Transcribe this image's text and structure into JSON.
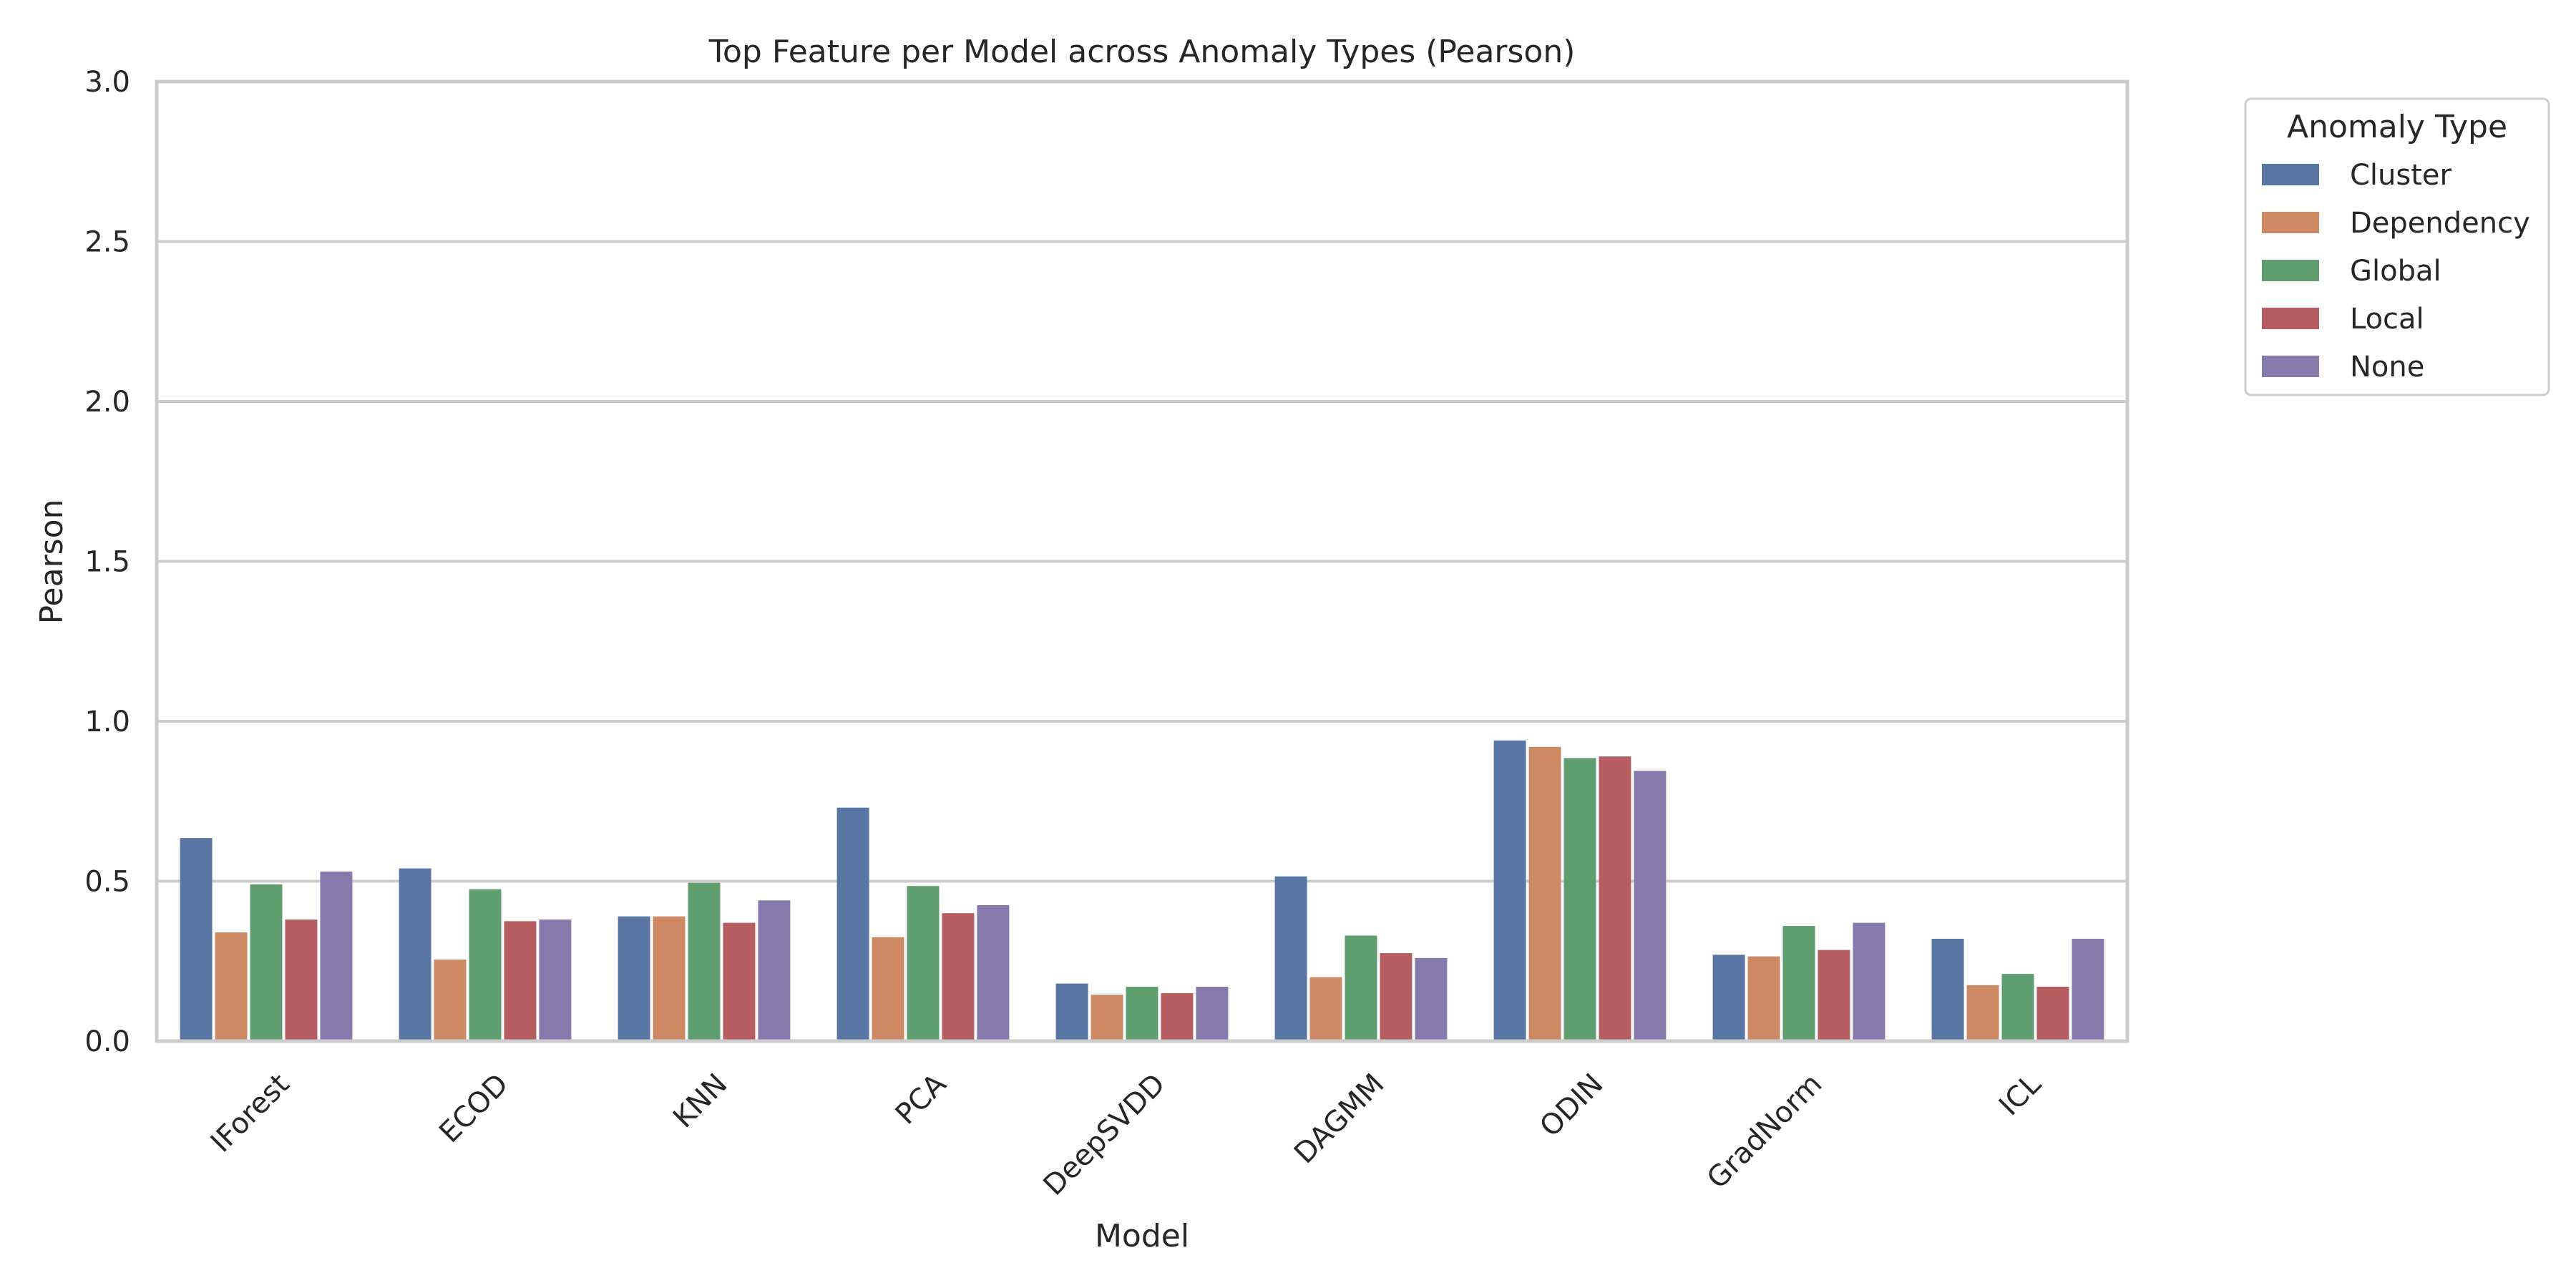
{
  "chart_data": {
    "type": "bar",
    "title": "Top Feature per Model across Anomaly Types (Pearson)",
    "xlabel": "Model",
    "ylabel": "Pearson",
    "ylim": [
      0,
      3.0
    ],
    "yticks": [
      "0.0",
      "0.5",
      "1.0",
      "1.5",
      "2.0",
      "2.5",
      "3.0"
    ],
    "grid": true,
    "legend": {
      "title": "Anomaly Type",
      "placement": "outside-top-right"
    },
    "categories": [
      "IForest",
      "ECOD",
      "KNN",
      "PCA",
      "DeepSVDD",
      "DAGMM",
      "ODIN",
      "GradNorm",
      "ICL"
    ],
    "series": [
      {
        "name": "Cluster",
        "color": "#5875a4",
        "values": [
          0.635,
          0.54,
          0.39,
          0.73,
          0.18,
          0.515,
          0.94,
          0.27,
          0.32
        ]
      },
      {
        "name": "Dependency",
        "color": "#cc8963",
        "values": [
          0.34,
          0.255,
          0.39,
          0.325,
          0.145,
          0.2,
          0.92,
          0.265,
          0.175
        ]
      },
      {
        "name": "Global",
        "color": "#5f9e6e",
        "values": [
          0.49,
          0.475,
          0.495,
          0.485,
          0.17,
          0.33,
          0.885,
          0.36,
          0.21
        ]
      },
      {
        "name": "Local",
        "color": "#b55d60",
        "values": [
          0.38,
          0.375,
          0.37,
          0.4,
          0.15,
          0.275,
          0.89,
          0.285,
          0.17
        ]
      },
      {
        "name": "None",
        "color": "#857aab",
        "values": [
          0.53,
          0.38,
          0.44,
          0.425,
          0.17,
          0.26,
          0.845,
          0.37,
          0.32
        ]
      }
    ]
  }
}
